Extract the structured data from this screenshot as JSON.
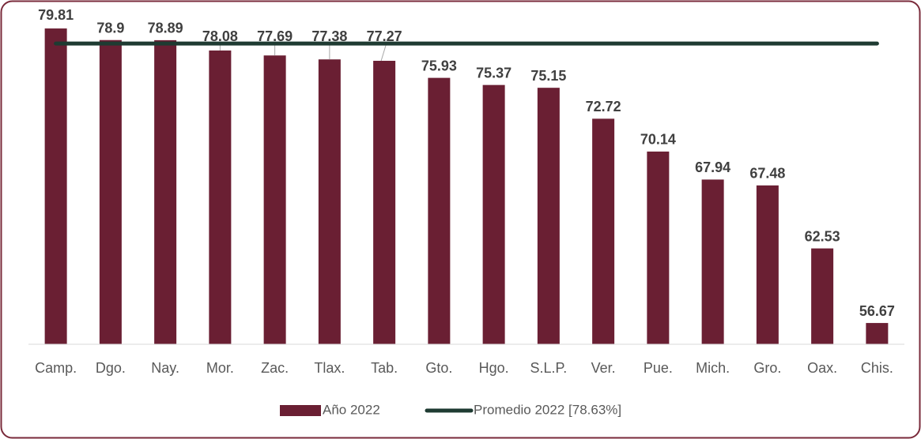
{
  "chart_data": {
    "type": "bar",
    "categories": [
      "Camp.",
      "Dgo.",
      "Nay.",
      "Mor.",
      "Zac.",
      "Tlax.",
      "Tab.",
      "Gto.",
      "Hgo.",
      "S.L.P.",
      "Ver.",
      "Pue.",
      "Mich.",
      "Gro.",
      "Oax.",
      "Chis."
    ],
    "series": [
      {
        "name": "Año 2022",
        "color": "#6a1f33",
        "values": [
          79.81,
          78.9,
          78.89,
          78.08,
          77.69,
          77.38,
          77.27,
          75.93,
          75.37,
          75.15,
          72.72,
          70.14,
          67.94,
          67.48,
          62.53,
          56.67
        ]
      }
    ],
    "average": {
      "name": "Promedio 2022 [78.63%]",
      "value": 78.63,
      "color": "#1e3b32"
    },
    "ylim": [
      55,
      80
    ]
  }
}
